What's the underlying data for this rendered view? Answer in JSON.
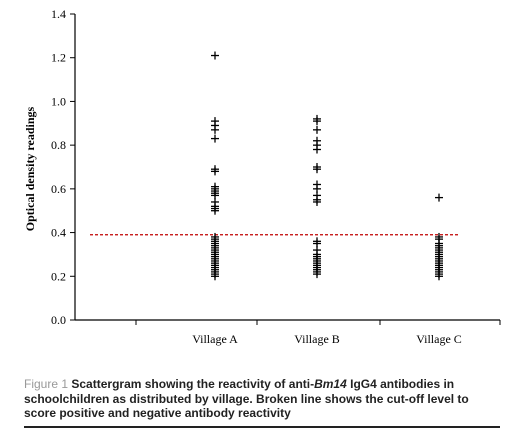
{
  "chart_data": {
    "type": "scatter",
    "ylabel": "Optical density readings",
    "ylim": [
      0.0,
      1.4
    ],
    "yticks": [
      "0.0",
      "0.2",
      "0.4",
      "0.6",
      "0.8",
      "1.0",
      "1.2",
      "1.4"
    ],
    "categories": [
      "Village A",
      "Village B",
      "Village C"
    ],
    "cutoff": 0.39,
    "cutoff_color": "#c00000",
    "marker": "plus",
    "grid": false,
    "series": [
      {
        "category": "Village A",
        "values": [
          1.21,
          0.91,
          0.89,
          0.87,
          0.83,
          0.69,
          0.68,
          0.61,
          0.6,
          0.59,
          0.58,
          0.57,
          0.54,
          0.52,
          0.51,
          0.5,
          0.38,
          0.37,
          0.36,
          0.35,
          0.34,
          0.33,
          0.32,
          0.31,
          0.3,
          0.29,
          0.28,
          0.27,
          0.26,
          0.25,
          0.24,
          0.23,
          0.22,
          0.21,
          0.2
        ]
      },
      {
        "category": "Village B",
        "values": [
          0.92,
          0.91,
          0.87,
          0.82,
          0.8,
          0.78,
          0.7,
          0.69,
          0.62,
          0.6,
          0.57,
          0.55,
          0.54,
          0.36,
          0.35,
          0.32,
          0.3,
          0.29,
          0.28,
          0.27,
          0.26,
          0.25,
          0.24,
          0.23,
          0.22,
          0.21
        ]
      },
      {
        "category": "Village C",
        "values": [
          0.56,
          0.38,
          0.37,
          0.35,
          0.34,
          0.33,
          0.32,
          0.31,
          0.3,
          0.29,
          0.28,
          0.27,
          0.26,
          0.25,
          0.24,
          0.23,
          0.22,
          0.21,
          0.2
        ]
      }
    ]
  },
  "caption": {
    "figure_label": "Figure 1",
    "text_before": "Scattergram showing the reactivity of anti-",
    "gene": "Bm14",
    "text_after": " IgG4 antibodies in schoolchildren as distributed by village. Broken line shows the cut-off level to score positive and negative antibody reactivity"
  }
}
